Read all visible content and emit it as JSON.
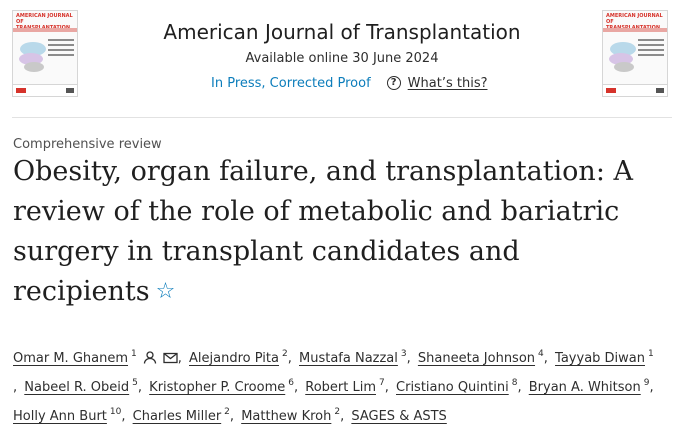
{
  "journal": {
    "title": "American Journal of Transplantation",
    "availability": "Available online 30 June 2024",
    "status_link": "In Press, Corrected Proof",
    "help_link": "What’s this?",
    "cover_text": "American Journal of TRANSPLANTATION"
  },
  "article": {
    "type": "Comprehensive review",
    "title": "Obesity, organ failure, and transplantation: A review of the role of metabolic and bariatric surgery in transplant candidates and recipients",
    "authors": [
      {
        "name": "Omar M. Ghanem",
        "aff": "1"
      },
      {
        "name": "Alejandro Pita",
        "aff": "2"
      },
      {
        "name": "Mustafa Nazzal",
        "aff": "3"
      },
      {
        "name": "Shaneeta Johnson",
        "aff": "4"
      },
      {
        "name": "Tayyab Diwan",
        "aff": "1"
      },
      {
        "name": "Nabeel R. Obeid",
        "aff": "5"
      },
      {
        "name": "Kristopher P. Croome",
        "aff": "6"
      },
      {
        "name": "Robert Lim",
        "aff": "7"
      },
      {
        "name": "Cristiano Quintini",
        "aff": "8"
      },
      {
        "name": "Bryan A. Whitson",
        "aff": "9"
      },
      {
        "name": "Holly Ann Burt",
        "aff": "10"
      },
      {
        "name": "Charles Miller",
        "aff": "2"
      },
      {
        "name": "Matthew Kroh",
        "aff": "2"
      },
      {
        "name": "SAGES & ASTS",
        "aff": ""
      }
    ]
  },
  "icons": {
    "star": "star-outline-icon",
    "help": "question-circle-icon",
    "person": "person-icon",
    "mail": "envelope-icon"
  },
  "colors": {
    "link": "#0c7dbb",
    "text": "#2e2e2e",
    "cover_accent": "#d6332b"
  }
}
